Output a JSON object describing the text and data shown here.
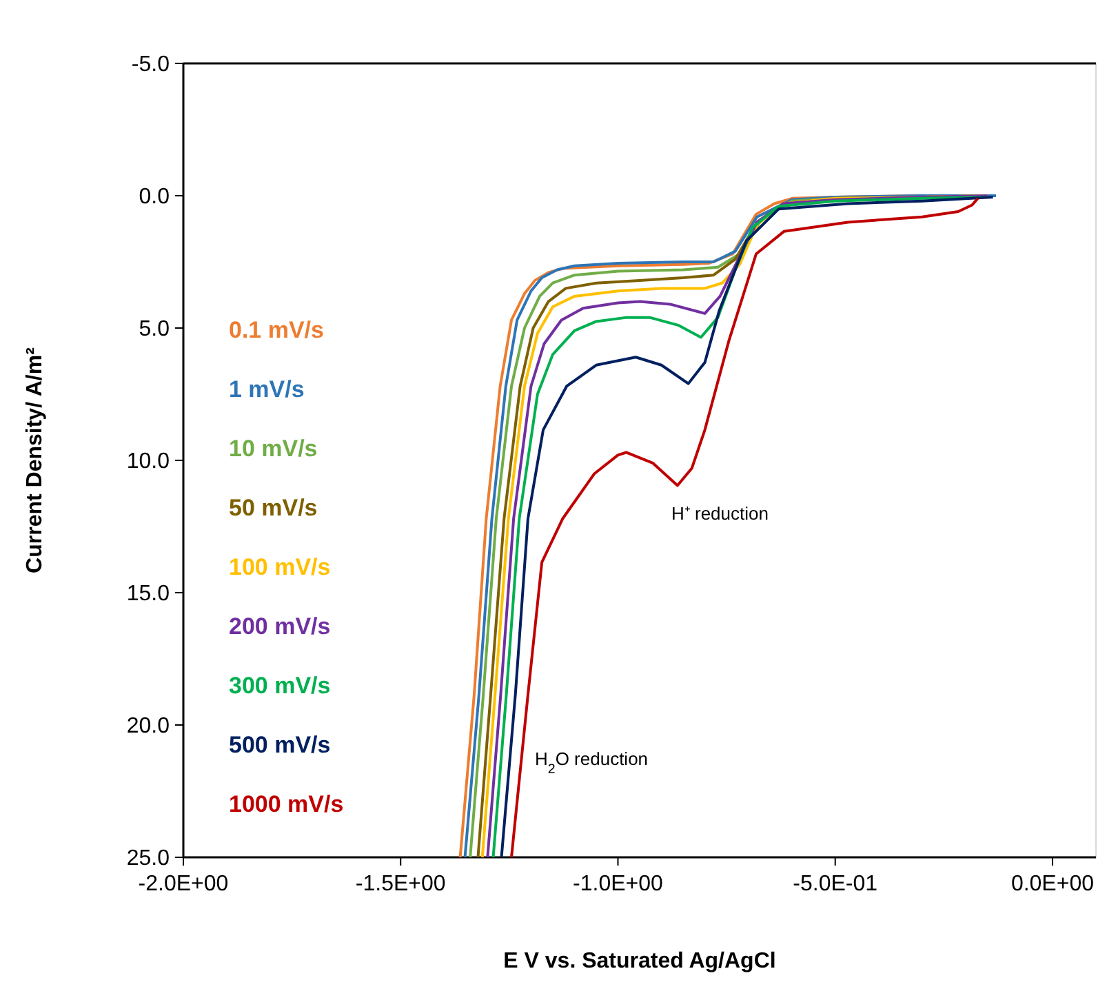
{
  "chart_data": {
    "type": "line",
    "xlabel": "E  V vs. Saturated  Ag/AgCl",
    "ylabel": "Current Density/ A/m²",
    "xlim": [
      -2.0,
      0.1
    ],
    "ylim": [
      25,
      -5
    ],
    "xticks": [
      {
        "value": -2.0,
        "label": "-2.0E+00"
      },
      {
        "value": -1.5,
        "label": "-1.5E+00"
      },
      {
        "value": -1.0,
        "label": "-1.0E+00"
      },
      {
        "value": -0.5,
        "label": "-5.0E-01"
      },
      {
        "value": 0,
        "label": "0.0E+00"
      }
    ],
    "yticks": [
      {
        "value": -5,
        "label": "-5.0"
      },
      {
        "value": 0,
        "label": "0.0"
      },
      {
        "value": 5,
        "label": "5.0"
      },
      {
        "value": 10,
        "label": "10.0"
      },
      {
        "value": 15,
        "label": "15.0"
      },
      {
        "value": 20,
        "label": "20.0"
      },
      {
        "value": 25,
        "label": "25.0"
      }
    ],
    "grid": false,
    "legend": "left",
    "marker": "none",
    "line_style": "solid",
    "annotations": [
      "H⁺ reduction",
      "H$_{2}$O reduction"
    ],
    "series": [
      {
        "name": "0.1 mV/s",
        "color": "#ed7d31",
        "x": [
          -1.363,
          -1.331,
          -1.303,
          -1.271,
          -1.245,
          -1.215,
          -1.191,
          -1.16,
          -1.127,
          -1.0,
          -0.85,
          -0.79,
          -0.736,
          -0.682,
          -0.64,
          -0.599,
          -0.5,
          -0.3,
          -0.162
        ],
        "values": [
          25,
          18.9,
          12.2,
          7.2,
          4.7,
          3.7,
          3.2,
          2.9,
          2.75,
          2.65,
          2.6,
          2.55,
          2.2,
          0.7,
          0.3,
          0.1,
          0.05,
          0.0,
          0.0
        ]
      },
      {
        "name": "1 mV/s",
        "color": "#2e75b6",
        "x": [
          -1.352,
          -1.32,
          -1.29,
          -1.258,
          -1.232,
          -1.2,
          -1.175,
          -1.14,
          -1.1,
          -1.0,
          -0.85,
          -0.78,
          -0.73,
          -0.68,
          -0.6,
          -0.5,
          -0.3,
          -0.13
        ],
        "values": [
          25,
          18.9,
          12.2,
          7.2,
          4.7,
          3.6,
          3.1,
          2.8,
          2.65,
          2.55,
          2.5,
          2.5,
          2.1,
          0.8,
          0.15,
          0.05,
          0,
          0
        ]
      },
      {
        "name": "10 mV/s",
        "color": "#70ad47",
        "x": [
          -1.34,
          -1.31,
          -1.28,
          -1.245,
          -1.215,
          -1.18,
          -1.15,
          -1.1,
          -1.0,
          -0.85,
          -0.77,
          -0.72,
          -0.67,
          -0.6,
          -0.5,
          -0.3,
          -0.15
        ],
        "values": [
          25,
          18.9,
          12.2,
          7.2,
          5.0,
          3.8,
          3.3,
          3.0,
          2.85,
          2.8,
          2.7,
          2.2,
          0.9,
          0.2,
          0.1,
          0.05,
          0
        ]
      },
      {
        "name": "50 mV/s",
        "color": "#7f6000",
        "x": [
          -1.322,
          -1.293,
          -1.262,
          -1.225,
          -1.195,
          -1.16,
          -1.12,
          -1.05,
          -0.95,
          -0.85,
          -0.78,
          -0.73,
          -0.68,
          -0.62,
          -0.5,
          -0.3,
          -0.15
        ],
        "values": [
          25,
          18.9,
          12.2,
          7.2,
          5.0,
          4.0,
          3.5,
          3.3,
          3.2,
          3.1,
          3.0,
          2.4,
          1.0,
          0.3,
          0.1,
          0.05,
          0
        ]
      },
      {
        "name": "100 mV/s",
        "color": "#ffc000",
        "x": [
          -1.312,
          -1.283,
          -1.252,
          -1.215,
          -1.185,
          -1.15,
          -1.1,
          -1.0,
          -0.9,
          -0.8,
          -0.76,
          -0.72,
          -0.68,
          -0.62,
          -0.5,
          -0.3,
          -0.15
        ],
        "values": [
          25,
          18.9,
          12.2,
          7.2,
          5.2,
          4.2,
          3.8,
          3.6,
          3.5,
          3.5,
          3.3,
          2.6,
          1.1,
          0.3,
          0.1,
          0.05,
          0
        ]
      },
      {
        "name": "200 mV/s",
        "color": "#7030a0",
        "x": [
          -1.3,
          -1.27,
          -1.24,
          -1.2,
          -1.17,
          -1.13,
          -1.08,
          -1.0,
          -0.949,
          -0.88,
          -0.8,
          -0.765,
          -0.72,
          -0.68,
          -0.62,
          -0.5,
          -0.3,
          -0.15
        ],
        "values": [
          25,
          18.9,
          12.2,
          7.2,
          5.6,
          4.7,
          4.25,
          4.05,
          4.0,
          4.1,
          4.45,
          3.8,
          2.3,
          1.0,
          0.3,
          0.15,
          0.05,
          0
        ]
      },
      {
        "name": "300 mV/s",
        "color": "#00b050",
        "x": [
          -1.287,
          -1.257,
          -1.227,
          -1.185,
          -1.15,
          -1.1,
          -1.05,
          -0.98,
          -0.927,
          -0.86,
          -0.809,
          -0.77,
          -0.73,
          -0.69,
          -0.63,
          -0.5,
          -0.3,
          -0.15
        ],
        "values": [
          25,
          18.9,
          12.2,
          7.5,
          6.0,
          5.1,
          4.75,
          4.6,
          4.6,
          4.9,
          5.35,
          4.6,
          2.8,
          1.2,
          0.4,
          0.2,
          0.1,
          0.05
        ]
      },
      {
        "name": "500 mV/s",
        "color": "#002060",
        "x": [
          -1.268,
          -1.236,
          -1.207,
          -1.172,
          -1.118,
          -1.05,
          -0.959,
          -0.9,
          -0.838,
          -0.8,
          -0.767,
          -0.704,
          -0.63,
          -0.47,
          -0.3,
          -0.137
        ],
        "values": [
          25,
          18.85,
          12.2,
          8.85,
          7.2,
          6.4,
          6.1,
          6.4,
          7.1,
          6.3,
          4.35,
          1.7,
          0.5,
          0.3,
          0.2,
          0.05
        ]
      },
      {
        "name": "1000 mV/s",
        "color": "#c00000",
        "x": [
          -1.245,
          -1.207,
          -1.175,
          -1.127,
          -1.054,
          -1.0,
          -0.981,
          -0.92,
          -0.863,
          -0.83,
          -0.8,
          -0.745,
          -0.682,
          -0.618,
          -0.471,
          -0.3,
          -0.217,
          -0.185,
          -0.172
        ],
        "values": [
          25,
          18.85,
          13.85,
          12.2,
          10.5,
          9.8,
          9.7,
          10.1,
          10.95,
          10.3,
          8.85,
          5.5,
          2.2,
          1.35,
          1.0,
          0.8,
          0.6,
          0.35,
          0.1
        ]
      }
    ]
  }
}
